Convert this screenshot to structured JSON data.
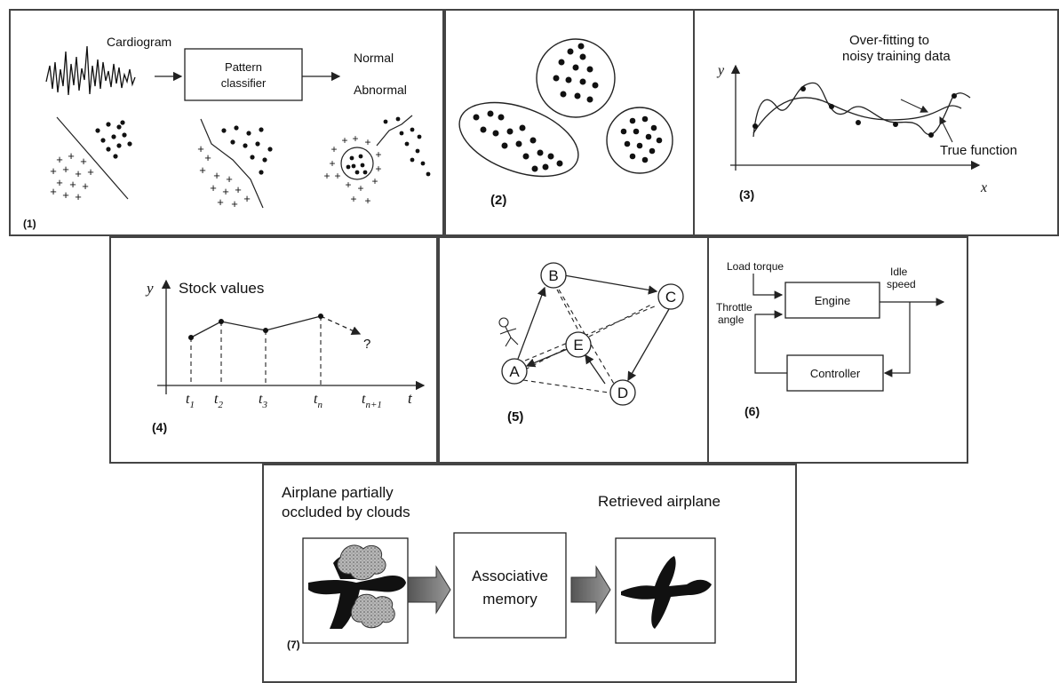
{
  "panel1": {
    "label": "(1)",
    "signal_label": "Cardiogram",
    "classifier_line1": "Pattern",
    "classifier_line2": "classifier",
    "output_normal": "Normal",
    "output_abnormal": "Abnormal"
  },
  "panel2": {
    "label": "(2)"
  },
  "panel3": {
    "label": "(3)",
    "y_axis": "y",
    "x_axis": "x",
    "overfit_line1": "Over-fitting to",
    "overfit_line2": "noisy training data",
    "true_function": "True function"
  },
  "panel4": {
    "label": "(4)",
    "y_axis": "y",
    "title": "Stock values",
    "t_axis": "t",
    "ticks": [
      {
        "base": "t",
        "sub": "1"
      },
      {
        "base": "t",
        "sub": "2"
      },
      {
        "base": "t",
        "sub": "3"
      },
      {
        "base": "t",
        "sub": "n"
      },
      {
        "base": "t",
        "sub": "n+1"
      }
    ],
    "question": "?"
  },
  "panel5": {
    "label": "(5)",
    "nodes": [
      "A",
      "B",
      "C",
      "D",
      "E"
    ]
  },
  "panel6": {
    "label": "(6)",
    "load_torque": "Load torque",
    "idle_line1": "Idle",
    "idle_line2": "speed",
    "throttle_line1": "Throttle",
    "throttle_line2": "angle",
    "engine": "Engine",
    "controller": "Controller"
  },
  "panel7": {
    "label": "(7)",
    "input_line1": "Airplane partially",
    "input_line2": "occluded by clouds",
    "memory_line1": "Associative",
    "memory_line2": "memory",
    "output_label": "Retrieved airplane"
  }
}
